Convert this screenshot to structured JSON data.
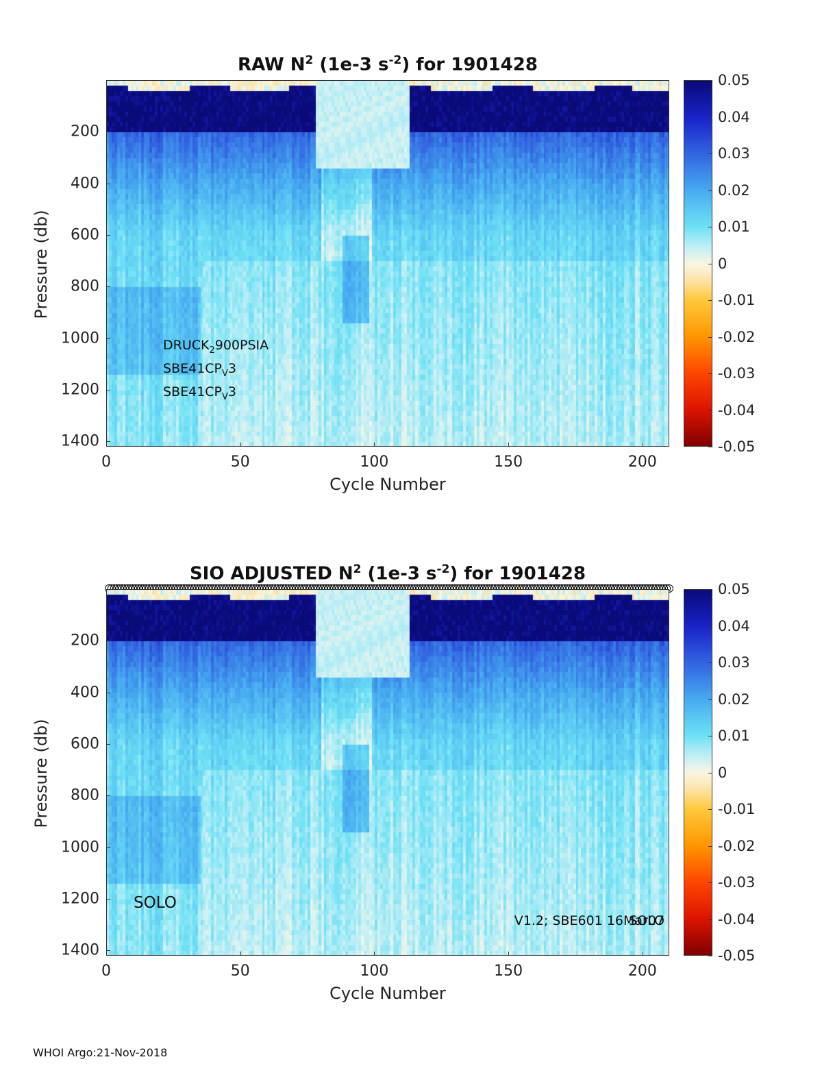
{
  "panels": {
    "top": {
      "title_main": "RAW N",
      "title_sup1": "2",
      "title_mid": " (1e-3 s",
      "title_sup2": "-2",
      "title_end": ") for 1901428",
      "annotations": [
        {
          "base": "DRUCK",
          "sub": "2",
          "rest": "900PSIA"
        },
        {
          "base": "SBE41CP",
          "sub": "V",
          "rest": "3"
        },
        {
          "base": "SBE41CP",
          "sub": "V",
          "rest": "3"
        }
      ]
    },
    "bottom": {
      "title_main": "SIO  ADJUSTED N",
      "title_sup1": "2",
      "title_mid": " (1e-3 s",
      "title_sup2": "-2",
      "title_end": ") for 1901428",
      "float_name": "SOLO",
      "sensor_label": "V1.2; SBE601 16Mar07",
      "sensor_label_overlap": "SOLO"
    }
  },
  "axes": {
    "xlabel": "Cycle Number",
    "ylabel": "Pressure (db)",
    "xticks": [
      "0",
      "50",
      "100",
      "150",
      "200"
    ],
    "yticks": [
      "200",
      "400",
      "600",
      "800",
      "1000",
      "1200",
      "1400"
    ],
    "colorbar_ticks": [
      "0.05",
      "0.04",
      "0.03",
      "0.02",
      "0.01",
      "0",
      "-0.01",
      "-0.02",
      "-0.03",
      "-0.04",
      "-0.05"
    ]
  },
  "footer": "WHOI Argo:21-Nov-2018",
  "chart_data": [
    {
      "type": "heatmap",
      "title": "RAW N^2 (1e-3 s^-2) for 1901428",
      "xlabel": "Cycle Number",
      "ylabel": "Pressure (db)",
      "xlim": [
        0,
        210
      ],
      "ylim": [
        1420,
        0
      ],
      "clim": [
        -0.05,
        0.05
      ],
      "colormap": "blue-white-red (positive blue, negative red)",
      "xticks": [
        0,
        50,
        100,
        150,
        200
      ],
      "yticks": [
        200,
        400,
        600,
        800,
        1000,
        1200,
        1400
      ],
      "depth_profile_typical": [
        {
          "pressure": 50,
          "value": 0.05
        },
        {
          "pressure": 200,
          "value": 0.03
        },
        {
          "pressure": 400,
          "value": 0.02
        },
        {
          "pressure": 600,
          "value": 0.012
        },
        {
          "pressure": 800,
          "value": 0.011
        },
        {
          "pressure": 1000,
          "value": 0.01
        },
        {
          "pressure": 1200,
          "value": 0.009
        },
        {
          "pressure": 1400,
          "value": 0.008
        }
      ],
      "features": [
        {
          "cycles": [
            78,
            112
          ],
          "pressure": [
            0,
            350
          ],
          "value": 0.0
        },
        {
          "cycles": [
            0,
            35
          ],
          "pressure": [
            800,
            1100
          ],
          "value": 0.016
        }
      ]
    },
    {
      "type": "heatmap",
      "title": "SIO  ADJUSTED N^2 (1e-3 s^-2) for 1901428",
      "xlabel": "Cycle Number",
      "ylabel": "Pressure (db)",
      "xlim": [
        0,
        210
      ],
      "ylim": [
        1420,
        0
      ],
      "clim": [
        -0.05,
        0.05
      ],
      "colormap": "blue-white-red (positive blue, negative red)",
      "xticks": [
        0,
        50,
        100,
        150,
        200
      ],
      "yticks": [
        200,
        400,
        600,
        800,
        1000,
        1200,
        1400
      ],
      "qc_markers": "circles at top of plot for every cycle 1-210"
    }
  ]
}
